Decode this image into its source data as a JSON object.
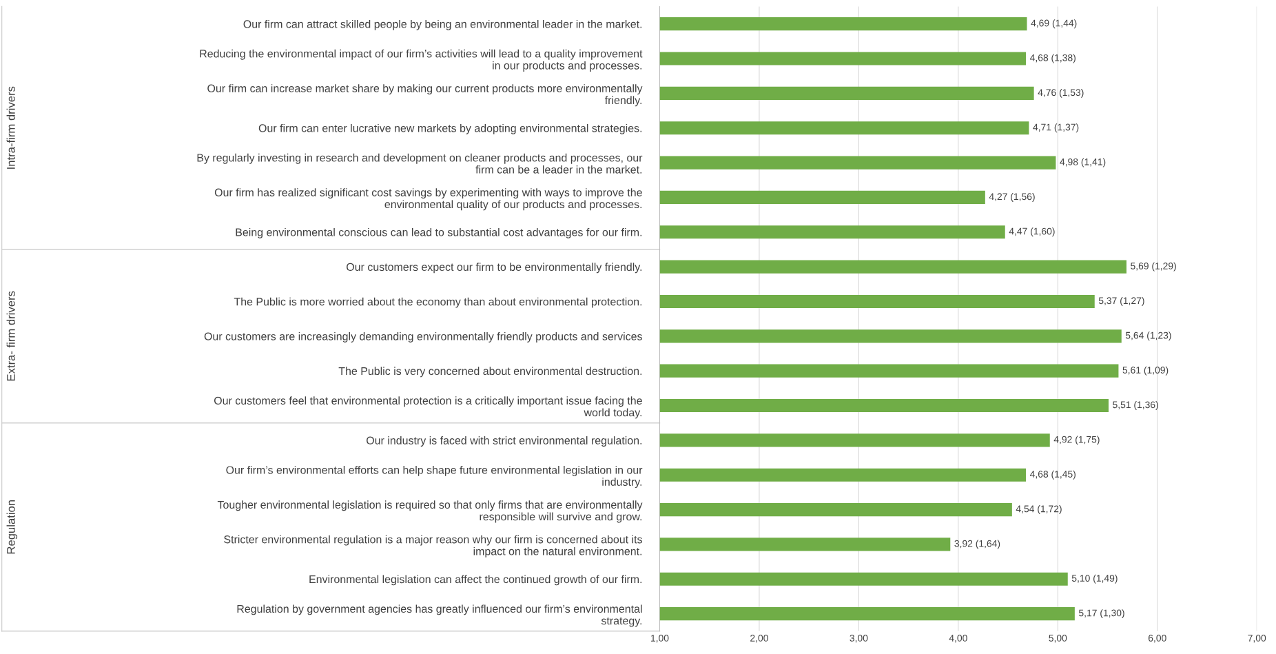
{
  "chart_data": {
    "type": "bar",
    "orientation": "horizontal",
    "categories": [
      "Our firm can attract skilled people by being an environmental leader in the market.",
      "Reducing the environmental impact of our firm’s activities will lead to a quality improvement\nin our products and processes.",
      "Our firm can increase market share by making our current products more environmentally\nfriendly.",
      "Our firm can enter lucrative new markets by adopting environmental strategies.",
      "By regularly investing in research and development on cleaner products and processes, our\nfirm can be a leader in the market.",
      "Our firm has realized significant cost savings by experimenting with ways to improve the\nenvironmental quality of our products and processes.",
      "Being environmental conscious can lead to substantial cost advantages for our firm.",
      "Our customers expect our firm to be environmentally friendly.",
      "The Public is more worried about the economy than about environmental protection.",
      "Our customers are increasingly demanding environmentally friendly products and services",
      "The Public is very concerned about environmental destruction.",
      "Our customers feel that environmental protection is a critically important issue facing the\nworld today.",
      "Our industry is faced with strict environmental regulation.",
      "Our firm’s environmental efforts can help shape future environmental legislation in our\nindustry.",
      "Tougher environmental legislation is required so that only firms that are environmentally\nresponsible will survive and grow.",
      "Stricter environmental regulation is a major reason why our firm is concerned about its\nimpact on the natural environment.",
      "Environmental legislation can affect the continued growth of our firm.",
      "Regulation by government agencies has greatly influenced our firm’s environmental\nstrategy."
    ],
    "values": [
      4.69,
      4.68,
      4.76,
      4.71,
      4.98,
      4.27,
      4.47,
      5.69,
      5.37,
      5.64,
      5.61,
      5.51,
      4.92,
      4.68,
      4.54,
      3.92,
      5.1,
      5.17
    ],
    "value_labels": [
      "4,69 (1,44)",
      "4,68 (1,38)",
      "4,76 (1,53)",
      "4,71 (1,37)",
      "4,98 (1,41)",
      "4,27 (1,56)",
      "4,47 (1,60)",
      "5,69 (1,29)",
      "5,37 (1,27)",
      "5,64 (1,23)",
      "5,61 (1,09)",
      "5,51 (1,36)",
      "4,92 (1,75)",
      "4,68 (1,45)",
      "4,54 (1,72)",
      "3,92 (1,64)",
      "5,10 (1,49)",
      "5,17 (1,30)"
    ],
    "color": "#70ad47",
    "xlim": [
      1,
      7
    ],
    "xticks": [
      {
        "value": 1,
        "label": "1,00"
      },
      {
        "value": 2,
        "label": "2,00"
      },
      {
        "value": 3,
        "label": "3,00"
      },
      {
        "value": 4,
        "label": "4,00"
      },
      {
        "value": 5,
        "label": "5,00"
      },
      {
        "value": 6,
        "label": "6,00"
      },
      {
        "value": 7,
        "label": "7,00"
      }
    ],
    "grid": "x",
    "annotations": [
      "Intra-firm drivers",
      "Extra- firm drivers",
      "Regulation"
    ]
  }
}
